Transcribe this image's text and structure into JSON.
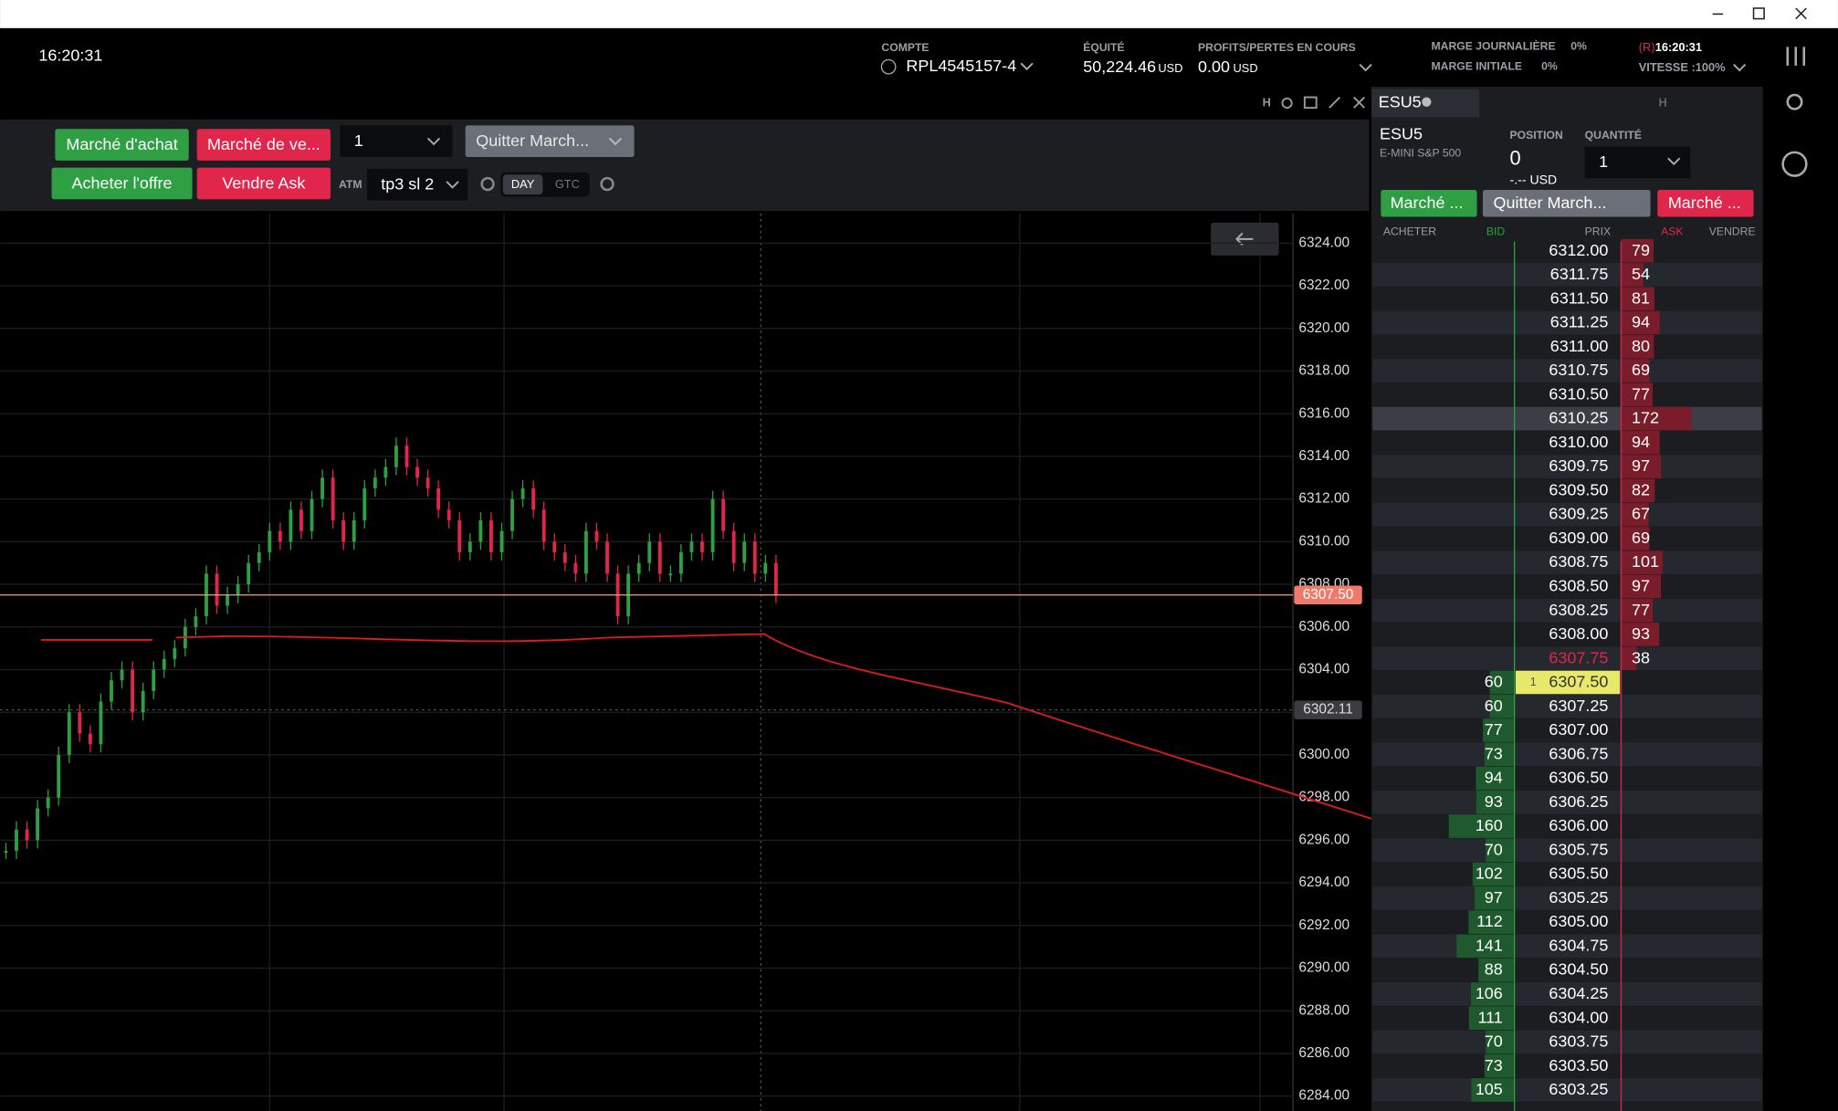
{
  "header": {
    "time": "16:20:31",
    "account_label": "COMPTE",
    "account": "RPL4545157-4",
    "equity_label": "ÉQUITÉ",
    "equity": "50,224.46",
    "equity_unit": "USD",
    "pnl_label": "PROFITS/PERTES EN COURS",
    "pnl": "0.00",
    "pnl_unit": "USD",
    "daily_margin_label": "MARGE JOURNALIÈRE",
    "daily_margin": "0%",
    "initial_margin_label": "MARGE INITIALE",
    "initial_margin": "0%",
    "server_flag": "(R)",
    "server_time": "16:20:31",
    "speed": "VITESSE :100%"
  },
  "order_bar": {
    "buy_market": "Marché d'achat",
    "sell_market": "Marché de ve...",
    "quantity": "1",
    "exit": "Quitter March...",
    "buy_bid": "Acheter l'offre",
    "sell_ask": "Vendre Ask",
    "atm_label": "ATM",
    "atm": "tp3 sl 2",
    "tif": [
      "DAY",
      "GTC"
    ]
  },
  "chart": {
    "toolbar": "H",
    "ylim": [
      6283.3,
      6325.4
    ],
    "yticks": [
      {
        "value": 6324,
        "label": "6324.00"
      },
      {
        "value": 6322,
        "label": "6322.00"
      },
      {
        "value": 6320,
        "label": "6320.00"
      },
      {
        "value": 6318,
        "label": "6318.00"
      },
      {
        "value": 6316,
        "label": "6316.00"
      },
      {
        "value": 6314,
        "label": "6314.00"
      },
      {
        "value": 6312,
        "label": "6312.00"
      },
      {
        "value": 6310,
        "label": "6310.00"
      },
      {
        "value": 6308,
        "label": "6308.00"
      },
      {
        "value": 6306,
        "label": "6306.00"
      },
      {
        "value": 6304,
        "label": "6304.00"
      },
      {
        "value": 6302,
        "label": "6302.00"
      },
      {
        "value": 6300,
        "label": "6300.00"
      },
      {
        "value": 6298,
        "label": "6298.00"
      },
      {
        "value": 6296,
        "label": "6296.00"
      },
      {
        "value": 6294,
        "label": "6294.00"
      },
      {
        "value": 6292,
        "label": "6292.00"
      },
      {
        "value": 6290,
        "label": "6290.00"
      },
      {
        "value": 6288,
        "label": "6288.00"
      },
      {
        "value": 6286,
        "label": "6286.00"
      },
      {
        "value": 6284,
        "label": "6284.00"
      }
    ],
    "last_price": {
      "value": 6307.5,
      "label": "6307.50"
    },
    "crosshair": {
      "value": 6302.11,
      "label": "6302.11"
    },
    "closes": [
      6295.5,
      6296.5,
      6296,
      6297.5,
      6298,
      6300,
      6302,
      6301,
      6300.5,
      6302.5,
      6303.5,
      6304,
      6302,
      6303,
      6304,
      6304.5,
      6305,
      6306,
      6306.5,
      6308.5,
      6307,
      6307.5,
      6308,
      6309,
      6309.5,
      6310.5,
      6310,
      6311.5,
      6310.5,
      6312,
      6313,
      6311,
      6310,
      6311,
      6312.5,
      6313,
      6313.5,
      6314.5,
      6313.5,
      6313,
      6312.5,
      6311.5,
      6311,
      6309.5,
      6310,
      6311,
      6309.5,
      6310.5,
      6312,
      6312.5,
      6311.5,
      6310,
      6309.5,
      6309,
      6308.5,
      6310.5,
      6310,
      6308.5,
      6306.5,
      6308.5,
      6309,
      6310,
      6308.5,
      6308.5,
      6309.5,
      6310,
      6309.5,
      6312,
      6310.5,
      6309,
      6310,
      6308.5,
      6309,
      6307.5
    ]
  },
  "dom": {
    "tab": "ESU5",
    "toolbar": "H",
    "symbol": "ESU5",
    "description": "E-MINI S&P 500",
    "position_label": "POSITION",
    "position": "0",
    "position_value": "-.-- USD",
    "quantity_label": "QUANTITÉ",
    "quantity": "1",
    "buttons": [
      "Marché ...",
      "Quitter March...",
      "Marché ..."
    ],
    "columns": [
      "ACHETER",
      "BID",
      "PRIX",
      "ASK",
      "VENDRE"
    ],
    "rows": [
      {
        "price": "6312.00",
        "ask": 79
      },
      {
        "price": "6311.75",
        "ask": 54
      },
      {
        "price": "6311.50",
        "ask": 81
      },
      {
        "price": "6311.25",
        "ask": 94
      },
      {
        "price": "6311.00",
        "ask": 80
      },
      {
        "price": "6310.75",
        "ask": 69
      },
      {
        "price": "6310.50",
        "ask": 77
      },
      {
        "price": "6310.25",
        "ask": 172
      },
      {
        "price": "6310.00",
        "ask": 94
      },
      {
        "price": "6309.75",
        "ask": 97
      },
      {
        "price": "6309.50",
        "ask": 82
      },
      {
        "price": "6309.25",
        "ask": 67
      },
      {
        "price": "6309.00",
        "ask": 69
      },
      {
        "price": "6308.75",
        "ask": 101
      },
      {
        "price": "6308.50",
        "ask": 97
      },
      {
        "price": "6308.25",
        "ask": 77
      },
      {
        "price": "6308.00",
        "ask": 93
      },
      {
        "price": "6307.75",
        "ask": 38
      },
      {
        "price": "6307.50",
        "bid": 60,
        "order": "1"
      },
      {
        "price": "6307.25",
        "bid": 60
      },
      {
        "price": "6307.00",
        "bid": 77
      },
      {
        "price": "6306.75",
        "bid": 73
      },
      {
        "price": "6306.50",
        "bid": 94
      },
      {
        "price": "6306.25",
        "bid": 93
      },
      {
        "price": "6306.00",
        "bid": 160
      },
      {
        "price": "6305.75",
        "bid": 70
      },
      {
        "price": "6305.50",
        "bid": 102
      },
      {
        "price": "6305.25",
        "bid": 97
      },
      {
        "price": "6305.00",
        "bid": 112
      },
      {
        "price": "6304.75",
        "bid": 141
      },
      {
        "price": "6304.50",
        "bid": 88
      },
      {
        "price": "6304.25",
        "bid": 106
      },
      {
        "price": "6304.00",
        "bid": 111
      },
      {
        "price": "6303.75",
        "bid": 70
      },
      {
        "price": "6303.50",
        "bid": 73
      },
      {
        "price": "6303.25",
        "bid": 105
      }
    ]
  }
}
